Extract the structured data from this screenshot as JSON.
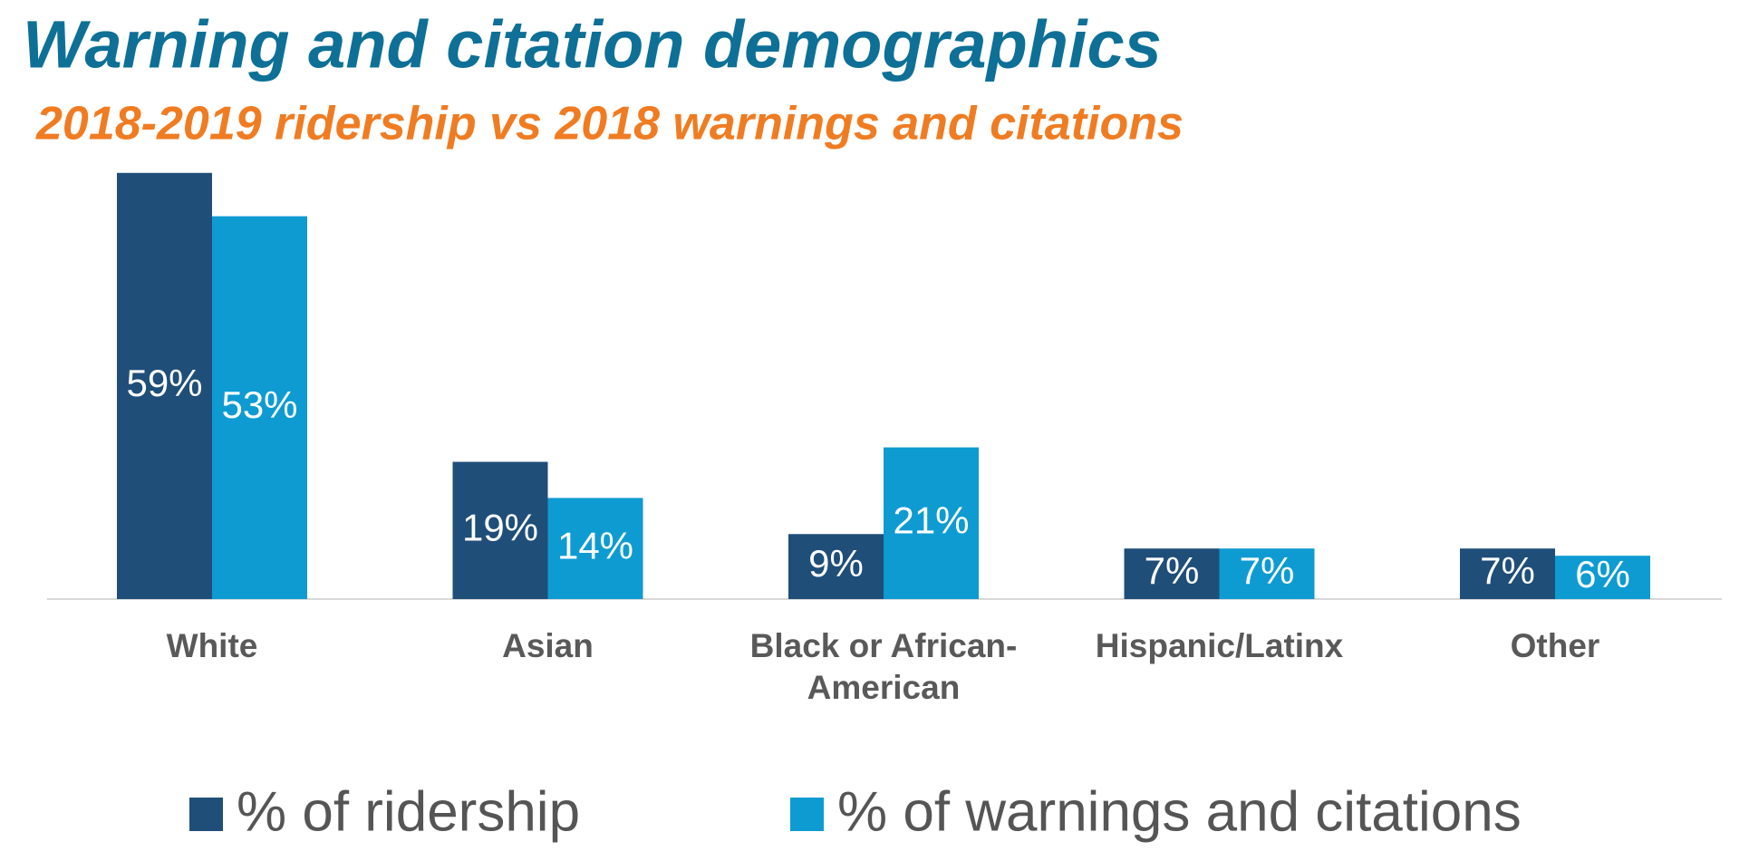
{
  "chart_data": {
    "type": "bar",
    "title": "Warning and citation demographics",
    "subtitle": "2018-2019 ridership vs 2018 warnings and citations",
    "categories": [
      "White",
      "Asian",
      "Black or African-American",
      "Hispanic/Latinx",
      "Other"
    ],
    "series": [
      {
        "name": "% of ridership",
        "color": "#1f4e79",
        "values": [
          59,
          19,
          9,
          7,
          7
        ],
        "value_labels": [
          "59%",
          "19%",
          "9%",
          "7%",
          "7%"
        ]
      },
      {
        "name": "% of warnings and citations",
        "color": "#0e9bd2",
        "values": [
          53,
          14,
          21,
          7,
          6
        ],
        "value_labels": [
          "53%",
          "14%",
          "21%",
          "7%",
          "6%"
        ]
      }
    ],
    "legend": "bottom"
  }
}
